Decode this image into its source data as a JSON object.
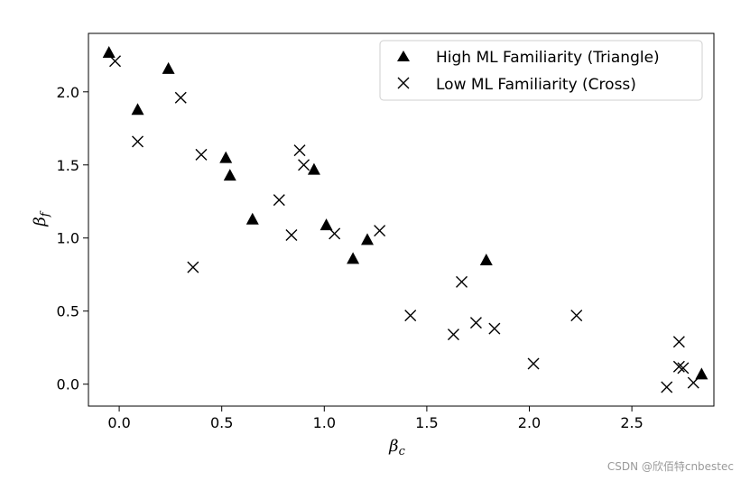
{
  "chart_data": {
    "type": "scatter",
    "title": "",
    "xlabel_main": "β",
    "xlabel_sub": "c",
    "ylabel_main": "β",
    "ylabel_sub": "f",
    "xlim": [
      -0.15,
      2.9
    ],
    "ylim": [
      -0.15,
      2.4
    ],
    "xticks": [
      0.0,
      0.5,
      1.0,
      1.5,
      2.0,
      2.5
    ],
    "xtick_labels": [
      "0.0",
      "0.5",
      "1.0",
      "1.5",
      "2.0",
      "2.5"
    ],
    "yticks": [
      0.0,
      0.5,
      1.0,
      1.5,
      2.0
    ],
    "ytick_labels": [
      "0.0",
      "0.5",
      "1.0",
      "1.5",
      "2.0"
    ],
    "grid": false,
    "legend_position": "top-right",
    "series": [
      {
        "name": "High ML Familiarity (Triangle)",
        "marker": "triangle",
        "color": "#000000",
        "points": [
          [
            -0.05,
            2.27
          ],
          [
            0.09,
            1.88
          ],
          [
            0.24,
            2.16
          ],
          [
            0.52,
            1.55
          ],
          [
            0.54,
            1.43
          ],
          [
            0.65,
            1.13
          ],
          [
            0.95,
            1.47
          ],
          [
            1.01,
            1.09
          ],
          [
            1.14,
            0.86
          ],
          [
            1.21,
            0.99
          ],
          [
            1.79,
            0.85
          ],
          [
            2.84,
            0.07
          ]
        ]
      },
      {
        "name": "Low ML Familiarity (Cross)",
        "marker": "cross",
        "color": "#000000",
        "points": [
          [
            -0.02,
            2.21
          ],
          [
            0.09,
            1.66
          ],
          [
            0.3,
            1.96
          ],
          [
            0.36,
            0.8
          ],
          [
            0.4,
            1.57
          ],
          [
            0.78,
            1.26
          ],
          [
            0.84,
            1.02
          ],
          [
            0.88,
            1.6
          ],
          [
            0.9,
            1.5
          ],
          [
            1.05,
            1.03
          ],
          [
            1.27,
            1.05
          ],
          [
            1.42,
            0.47
          ],
          [
            1.63,
            0.34
          ],
          [
            1.67,
            0.7
          ],
          [
            1.74,
            0.42
          ],
          [
            1.83,
            0.38
          ],
          [
            2.02,
            0.14
          ],
          [
            2.23,
            0.47
          ],
          [
            2.67,
            -0.02
          ],
          [
            2.73,
            0.29
          ],
          [
            2.73,
            0.12
          ],
          [
            2.75,
            0.11
          ],
          [
            2.8,
            0.01
          ]
        ]
      }
    ]
  },
  "watermark": "CSDN @欣佰特cnbestec"
}
